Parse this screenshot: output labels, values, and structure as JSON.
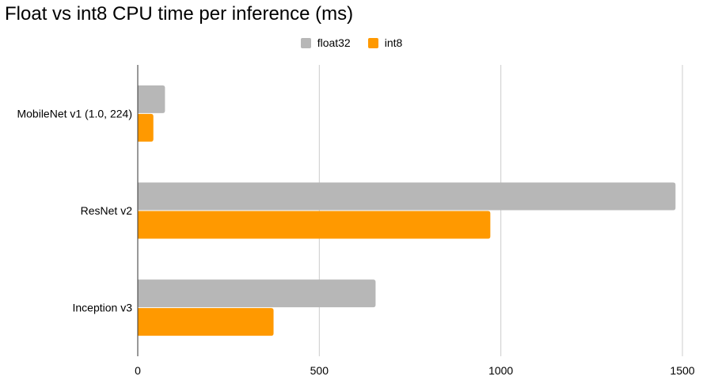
{
  "chart_data": {
    "type": "bar",
    "orientation": "horizontal",
    "title": "Float vs int8 CPU time per inference (ms)",
    "categories": [
      "MobileNet v1 (1.0, 224)",
      "ResNet v2",
      "Inception v3"
    ],
    "series": [
      {
        "name": "float32",
        "values": [
          75,
          1481,
          655
        ],
        "color": "#b7b7b7"
      },
      {
        "name": "int8",
        "values": [
          43,
          971,
          374
        ],
        "color": "#ff9900"
      }
    ],
    "xlim": [
      0,
      1500
    ],
    "xticks": [
      "0",
      "500",
      "1000",
      "1500"
    ],
    "grid": true,
    "legend": "top-center"
  }
}
